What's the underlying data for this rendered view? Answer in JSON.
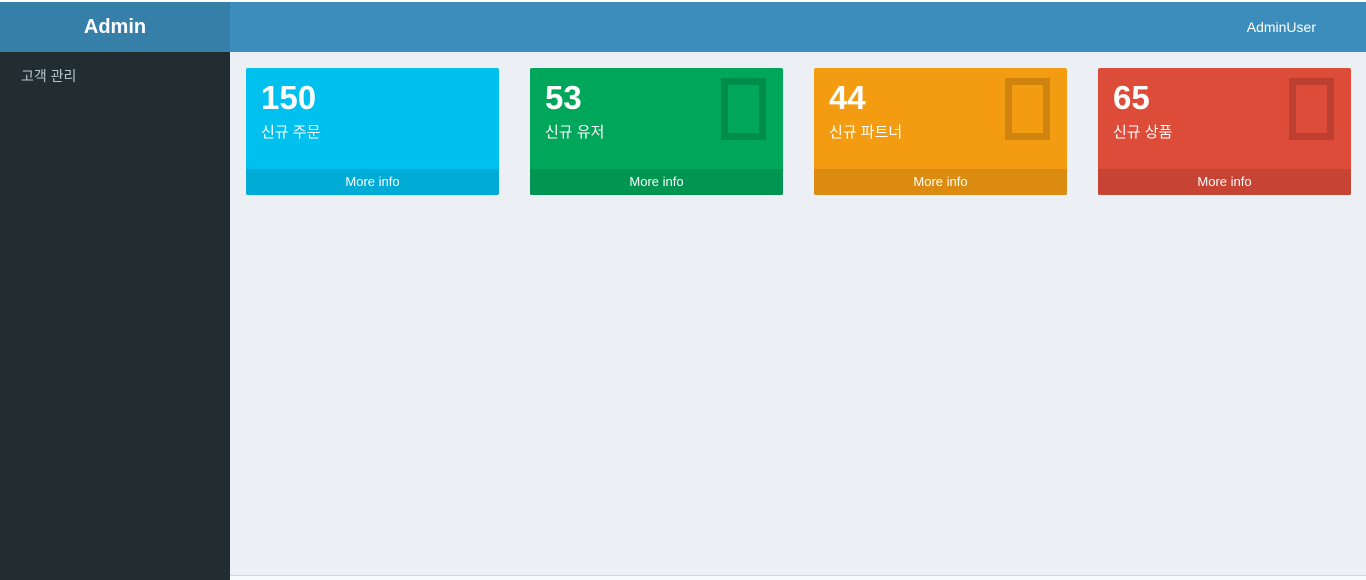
{
  "header": {
    "brand": "Admin",
    "user": "AdminUser"
  },
  "sidebar": {
    "items": [
      {
        "label": "고객 관리"
      }
    ]
  },
  "content": {
    "boxes": [
      {
        "value": "150",
        "label": "신규 주문",
        "link": "More info",
        "color": "#00c0ef",
        "footer_color": "#00acd6",
        "icon": null
      },
      {
        "value": "53",
        "label": "신규 유저",
        "link": "More info",
        "color": "#00a65a",
        "footer_color": "#009551",
        "icon": "missing-glyph-icon"
      },
      {
        "value": "44",
        "label": "신규 파트너",
        "link": "More info",
        "color": "#f39c12",
        "footer_color": "#db8c10",
        "icon": "missing-glyph-icon"
      },
      {
        "value": "65",
        "label": "신규 상품",
        "link": "More info",
        "color": "#dd4b39",
        "footer_color": "#c74334",
        "icon": "missing-glyph-icon"
      }
    ]
  },
  "colors": {
    "navbar": "#3c8dbc",
    "brand_bg": "#367fa9",
    "sidebar_bg": "#222d32",
    "sidebar_text": "#b8c7ce",
    "content_bg": "#ecf0f5"
  }
}
